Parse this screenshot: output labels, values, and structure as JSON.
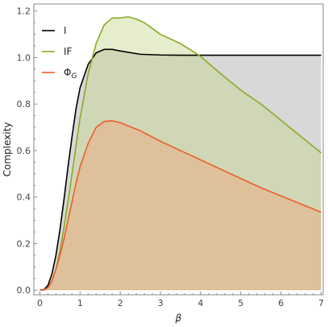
{
  "chart_data": {
    "type": "area",
    "xlabel": "β",
    "ylabel": "Complexity",
    "xlim": [
      -0.15,
      7.05
    ],
    "ylim": [
      -0.02,
      1.23
    ],
    "x_ticks": [
      0,
      1,
      2,
      3,
      4,
      5,
      6,
      7
    ],
    "y_ticks": [
      0.0,
      0.2,
      0.4,
      0.6,
      0.8,
      1.0,
      1.2
    ],
    "x_tick_labels": [
      "0",
      "1",
      "2",
      "3",
      "4",
      "5",
      "6",
      "7"
    ],
    "y_tick_labels": [
      "0.0",
      "0.2",
      "0.4",
      "0.6",
      "0.8",
      "1.0",
      "1.2"
    ],
    "legend_position": "top-left",
    "fill_baseline": 0,
    "series": [
      {
        "name": "I",
        "color": "#000000",
        "fill": "#a9a9a9",
        "x": [
          0,
          0.1,
          0.2,
          0.3,
          0.4,
          0.5,
          0.6,
          0.7,
          0.8,
          0.9,
          1.0,
          1.2,
          1.4,
          1.6,
          1.8,
          2.0,
          2.5,
          3.0,
          3.5,
          4.0,
          5.0,
          6.0,
          7.0
        ],
        "values": [
          0,
          0.002,
          0.02,
          0.07,
          0.15,
          0.26,
          0.39,
          0.53,
          0.66,
          0.78,
          0.87,
          0.97,
          1.02,
          1.035,
          1.035,
          1.028,
          1.014,
          1.011,
          1.01,
          1.01,
          1.01,
          1.01,
          1.01
        ]
      },
      {
        "name": "IF",
        "color": "#8aaa24",
        "fill": "#c7d88f",
        "x": [
          0,
          0.1,
          0.2,
          0.3,
          0.4,
          0.5,
          0.6,
          0.7,
          0.8,
          0.9,
          1.0,
          1.2,
          1.4,
          1.6,
          1.8,
          2.0,
          2.2,
          2.4,
          2.6,
          2.8,
          3.0,
          3.5,
          4.0,
          4.5,
          5.0,
          5.5,
          6.0,
          6.5,
          7.0
        ],
        "values": [
          0,
          0.001,
          0.01,
          0.04,
          0.09,
          0.17,
          0.27,
          0.38,
          0.5,
          0.62,
          0.74,
          0.93,
          1.06,
          1.14,
          1.17,
          1.17,
          1.175,
          1.165,
          1.15,
          1.125,
          1.1,
          1.06,
          1.005,
          0.93,
          0.86,
          0.8,
          0.73,
          0.66,
          0.59
        ]
      },
      {
        "name": "Φ",
        "subscript": "G",
        "color": "#ee5d28",
        "fill": "#f0a57a",
        "x": [
          0,
          0.1,
          0.2,
          0.3,
          0.4,
          0.5,
          0.6,
          0.7,
          0.8,
          0.9,
          1.0,
          1.2,
          1.4,
          1.6,
          1.8,
          2.0,
          2.5,
          3.0,
          3.5,
          4.0,
          4.5,
          5.0,
          5.5,
          6.0,
          6.5,
          7.0
        ],
        "values": [
          0,
          0.001,
          0.01,
          0.04,
          0.09,
          0.15,
          0.22,
          0.3,
          0.38,
          0.46,
          0.53,
          0.63,
          0.7,
          0.725,
          0.728,
          0.72,
          0.685,
          0.64,
          0.6,
          0.56,
          0.52,
          0.48,
          0.44,
          0.405,
          0.37,
          0.335
        ]
      }
    ]
  }
}
